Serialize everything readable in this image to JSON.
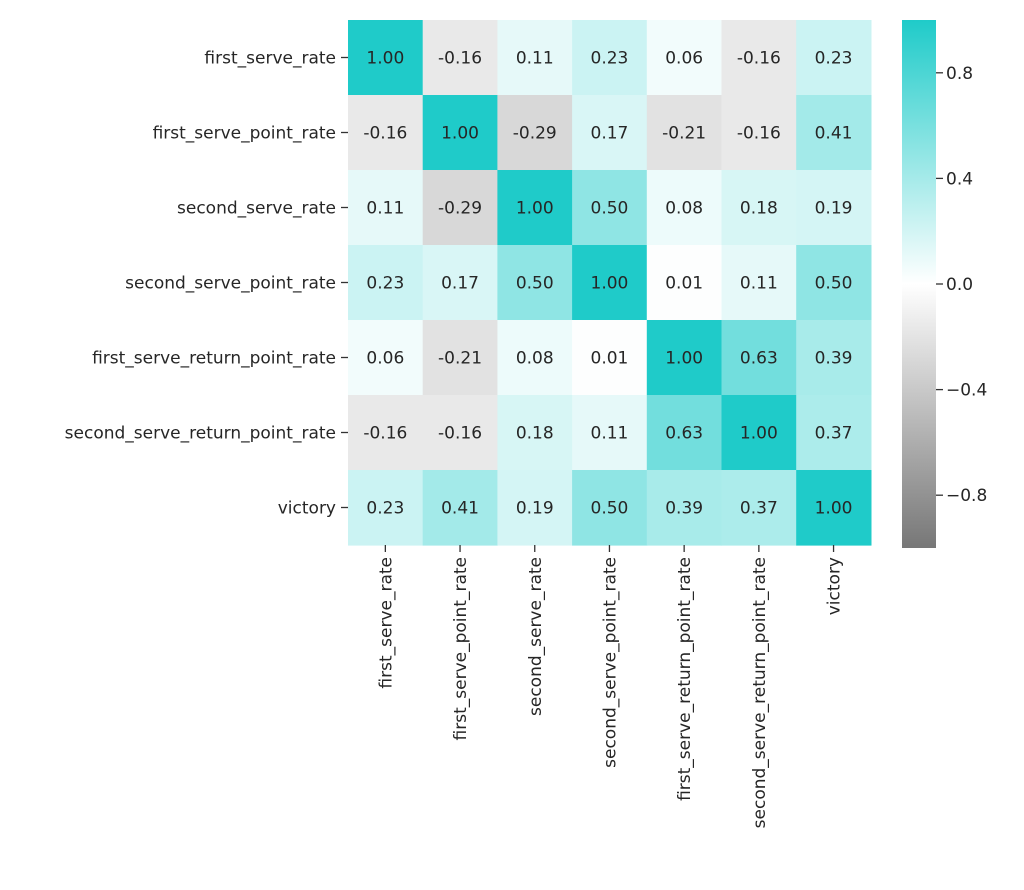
{
  "chart_data": {
    "type": "heatmap",
    "title": "",
    "xlabel": "",
    "ylabel": "",
    "rows": [
      "first_serve_rate",
      "first_serve_point_rate",
      "second_serve_rate",
      "second_serve_point_rate",
      "first_serve_return_point_rate",
      "second_serve_return_point_rate",
      "victory"
    ],
    "columns": [
      "first_serve_rate",
      "first_serve_point_rate",
      "second_serve_rate",
      "second_serve_point_rate",
      "first_serve_return_point_rate",
      "second_serve_return_point_rate",
      "victory"
    ],
    "values": [
      [
        1.0,
        -0.16,
        0.11,
        0.23,
        0.06,
        -0.16,
        0.23
      ],
      [
        -0.16,
        1.0,
        -0.29,
        0.17,
        -0.21,
        -0.16,
        0.41
      ],
      [
        0.11,
        -0.29,
        1.0,
        0.5,
        0.08,
        0.18,
        0.19
      ],
      [
        0.23,
        0.17,
        0.5,
        1.0,
        0.01,
        0.11,
        0.5
      ],
      [
        0.06,
        -0.21,
        0.08,
        0.01,
        1.0,
        0.63,
        0.39
      ],
      [
        -0.16,
        -0.16,
        0.18,
        0.11,
        0.63,
        1.0,
        0.37
      ],
      [
        0.23,
        0.41,
        0.19,
        0.5,
        0.39,
        0.37,
        1.0
      ]
    ],
    "value_labels": [
      [
        "1.00",
        "-0.16",
        "0.11",
        "0.23",
        "0.06",
        "-0.16",
        "0.23"
      ],
      [
        "-0.16",
        "1.00",
        "-0.29",
        "0.17",
        "-0.21",
        "-0.16",
        "0.41"
      ],
      [
        "0.11",
        "-0.29",
        "1.00",
        "0.50",
        "0.08",
        "0.18",
        "0.19"
      ],
      [
        "0.23",
        "0.17",
        "0.50",
        "1.00",
        "0.01",
        "0.11",
        "0.50"
      ],
      [
        "0.06",
        "-0.21",
        "0.08",
        "0.01",
        "1.00",
        "0.63",
        "0.39"
      ],
      [
        "-0.16",
        "-0.16",
        "0.18",
        "0.11",
        "0.63",
        "1.00",
        "0.37"
      ],
      [
        "0.23",
        "0.41",
        "0.19",
        "0.50",
        "0.39",
        "0.37",
        "1.00"
      ]
    ],
    "colorbar": {
      "range": [
        -1,
        1
      ],
      "ticks": [
        0.8,
        0.4,
        0.0,
        -0.4,
        -0.8
      ],
      "tick_labels": [
        "0.8",
        "0.4",
        "0.0",
        "−0.4",
        "−0.8"
      ]
    },
    "colors": {
      "high": "#1fcbc9",
      "mid": "#ffffff",
      "low": "#777777",
      "text": "#262626"
    }
  }
}
